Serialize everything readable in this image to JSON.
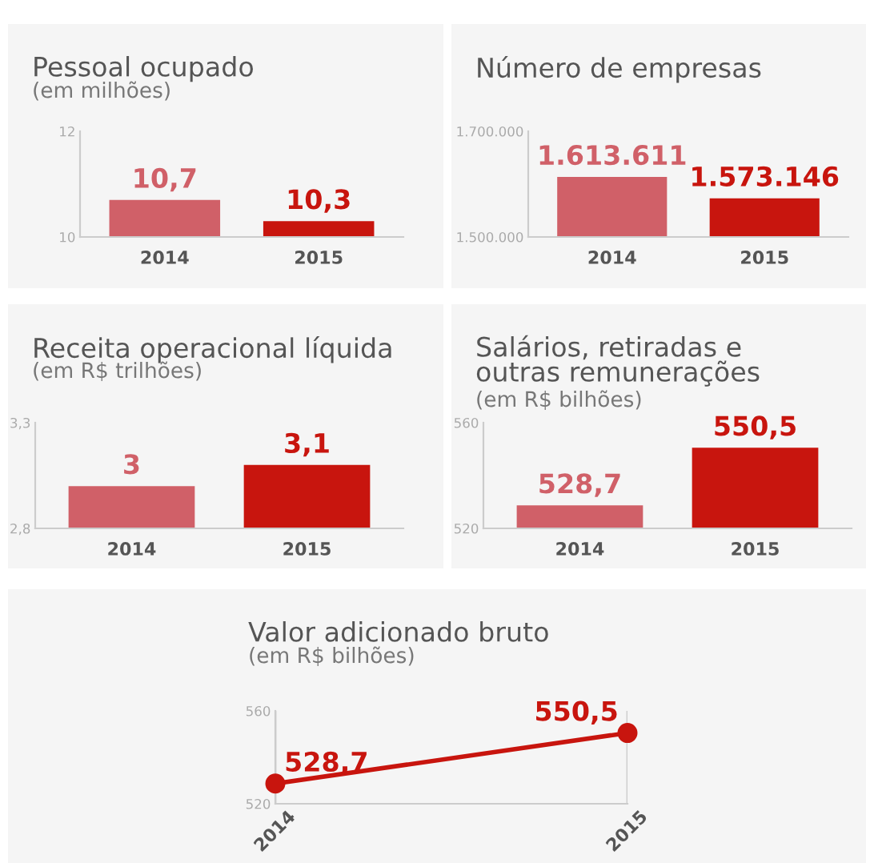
{
  "chart_data": [
    {
      "type": "bar",
      "title": "Pessoal ocupado",
      "subtitle": "(em milhões)",
      "categories": [
        "2014",
        "2015"
      ],
      "values": [
        10.7,
        10.3
      ],
      "colors": [
        "#d06068",
        "#c8150e"
      ],
      "value_labels": [
        "10,7",
        "10,3"
      ],
      "ylim": [
        10,
        12
      ],
      "yticks": [
        10,
        12
      ],
      "grid": false
    },
    {
      "type": "bar",
      "title": "Número de empresas",
      "categories": [
        "2014",
        "2015"
      ],
      "values": [
        1613611,
        1573146
      ],
      "colors": [
        "#d06068",
        "#c8150e"
      ],
      "value_labels": [
        "1.613.611",
        "1.573.146"
      ],
      "ylim": [
        1500000,
        1700000
      ],
      "yticks": [
        {
          "value": 1500000,
          "label": "1.500.000"
        },
        {
          "value": 1700000,
          "label": "1.700.000"
        }
      ],
      "grid": false
    },
    {
      "type": "bar",
      "title": "Receita operacional líquida",
      "subtitle": "(em R$ trilhões)",
      "categories": [
        "2014",
        "2015"
      ],
      "values": [
        3,
        3.1
      ],
      "colors": [
        "#d06068",
        "#c8150e"
      ],
      "value_labels": [
        "3",
        "3,1"
      ],
      "ylim": [
        2.8,
        3.3
      ],
      "yticks": [
        {
          "value": 2.8,
          "label": "2,8"
        },
        {
          "value": 3.3,
          "label": "3,3"
        }
      ],
      "grid": false
    },
    {
      "type": "bar",
      "title": "Salários, retiradas e\noutras remunerações",
      "subtitle": "(em R$ bilhões)",
      "categories": [
        "2014",
        "2015"
      ],
      "values": [
        528.7,
        550.5
      ],
      "colors": [
        "#d06068",
        "#c8150e"
      ],
      "value_labels": [
        "528,7",
        "550,5"
      ],
      "ylim": [
        520,
        560
      ],
      "yticks": [
        520,
        560
      ],
      "grid": false
    },
    {
      "type": "line",
      "title": "Valor adicionado bruto",
      "subtitle": "(em R$ bilhões)",
      "categories": [
        "2014",
        "2015"
      ],
      "series": [
        {
          "color": "#c8150e",
          "values": [
            528.7,
            550.5
          ],
          "value_labels": [
            "528,7",
            "550,5"
          ]
        }
      ],
      "ylim": [
        520,
        560
      ],
      "yticks": [
        520,
        560
      ],
      "grid": "x",
      "marker": "circle",
      "line_style": "solid"
    }
  ]
}
